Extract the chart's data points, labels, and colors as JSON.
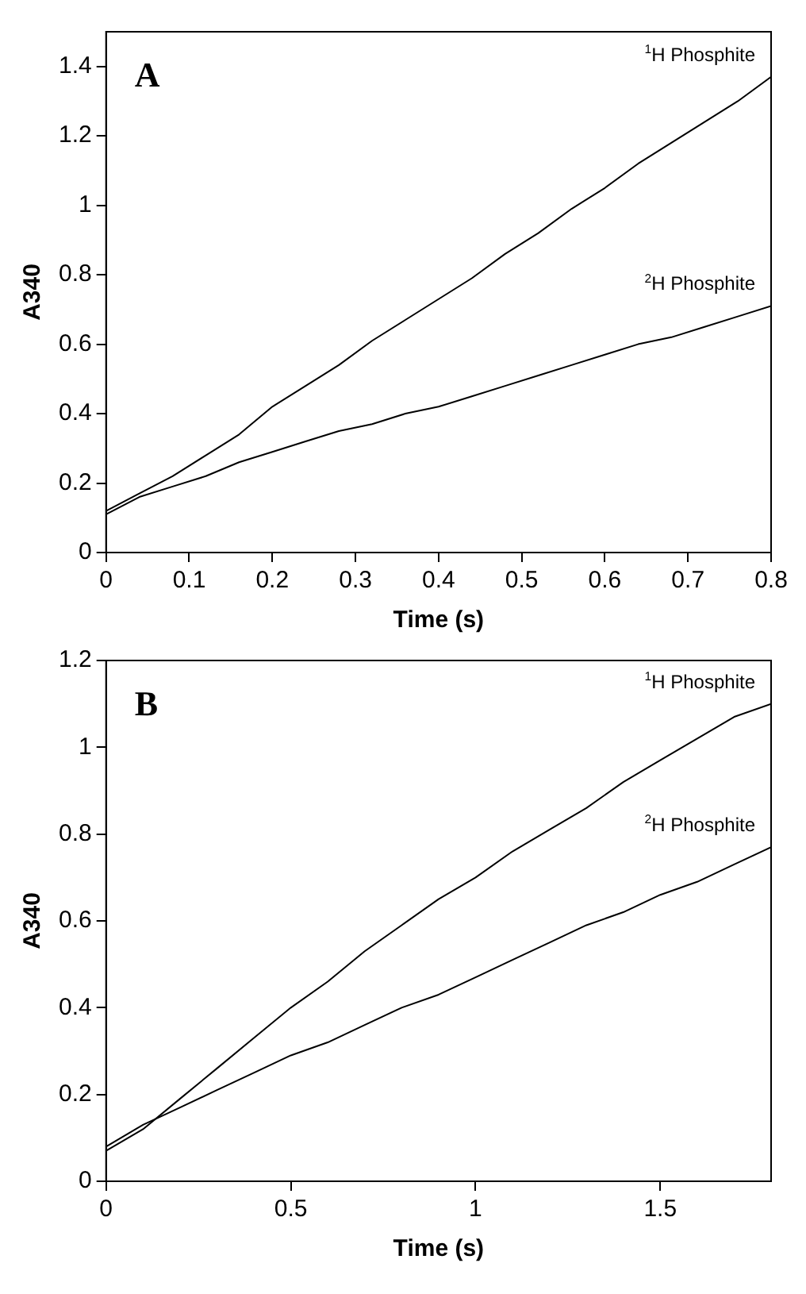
{
  "chart_data": [
    {
      "type": "line",
      "title": "A",
      "xlabel": "Time (s)",
      "ylabel": "A340",
      "xlim": [
        0,
        0.8
      ],
      "ylim": [
        0,
        1.5
      ],
      "xticks": [
        0,
        0.1,
        0.2,
        0.3,
        0.4,
        0.5,
        0.6,
        0.7,
        0.8
      ],
      "yticks": [
        0,
        0.2,
        0.4,
        0.6,
        0.8,
        1,
        1.2,
        1.4
      ],
      "grid": false,
      "legend": false,
      "marker": "none",
      "line_style": "solid",
      "x": [
        0,
        0.04,
        0.08,
        0.12,
        0.16,
        0.2,
        0.24,
        0.28,
        0.32,
        0.36,
        0.4,
        0.44,
        0.48,
        0.52,
        0.56,
        0.6,
        0.64,
        0.68,
        0.72,
        0.76,
        0.8
      ],
      "series": [
        {
          "name": "$^{1}$H Phosphite",
          "color": "#000000",
          "values": [
            0.12,
            0.17,
            0.22,
            0.28,
            0.34,
            0.42,
            0.48,
            0.54,
            0.61,
            0.67,
            0.73,
            0.79,
            0.86,
            0.92,
            0.99,
            1.05,
            1.12,
            1.18,
            1.24,
            1.3,
            1.37
          ]
        },
        {
          "name": "$^{2}$H Phosphite",
          "color": "#000000",
          "values": [
            0.11,
            0.16,
            0.19,
            0.22,
            0.26,
            0.29,
            0.32,
            0.35,
            0.37,
            0.4,
            0.42,
            0.45,
            0.48,
            0.51,
            0.54,
            0.57,
            0.6,
            0.62,
            0.65,
            0.68,
            0.71
          ]
        }
      ]
    },
    {
      "type": "line",
      "title": "B",
      "xlabel": "Time (s)",
      "ylabel": "A340",
      "xlim": [
        0,
        1.8
      ],
      "ylim": [
        0,
        1.2
      ],
      "xticks": [
        0,
        0.5,
        1,
        1.5
      ],
      "yticks": [
        0,
        0.2,
        0.4,
        0.6,
        0.8,
        1,
        1.2
      ],
      "grid": false,
      "legend": false,
      "marker": "none",
      "line_style": "solid",
      "x": [
        0,
        0.1,
        0.2,
        0.3,
        0.4,
        0.5,
        0.6,
        0.7,
        0.8,
        0.9,
        1,
        1.1,
        1.2,
        1.3,
        1.4,
        1.5,
        1.6,
        1.7,
        1.8
      ],
      "series": [
        {
          "name": "$^{1}$H Phosphite",
          "color": "#000000",
          "values": [
            0.07,
            0.12,
            0.19,
            0.26,
            0.33,
            0.4,
            0.46,
            0.53,
            0.59,
            0.65,
            0.7,
            0.76,
            0.81,
            0.86,
            0.92,
            0.97,
            1.02,
            1.07,
            1.1
          ]
        },
        {
          "name": "$^{2}$H Phosphite",
          "color": "#000000",
          "values": [
            0.08,
            0.13,
            0.17,
            0.21,
            0.25,
            0.29,
            0.32,
            0.36,
            0.4,
            0.43,
            0.47,
            0.51,
            0.55,
            0.59,
            0.62,
            0.66,
            0.69,
            0.73,
            0.77
          ]
        }
      ]
    }
  ]
}
